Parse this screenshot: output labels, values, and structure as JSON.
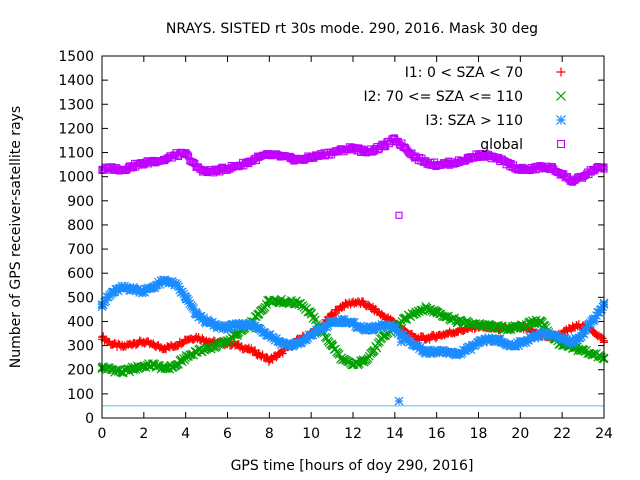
{
  "chart_data": {
    "type": "scatter",
    "title": "NRAYS. SISTED rt 30s mode. 290, 2016. Mask 30 deg",
    "xlabel": "GPS time [hours of doy 290, 2016]",
    "ylabel": "Number of GPS receiver-satellite rays",
    "xlim": [
      0,
      24
    ],
    "ylim": [
      0,
      1500
    ],
    "xticks": [
      0,
      2,
      4,
      6,
      8,
      10,
      12,
      14,
      16,
      18,
      20,
      22,
      24
    ],
    "yticks": [
      0,
      100,
      200,
      300,
      400,
      500,
      600,
      700,
      800,
      900,
      1000,
      1100,
      1200,
      1300,
      1400,
      1500
    ],
    "legend_position": "top-right",
    "reference_line": {
      "y": 50,
      "color": "#45c8e0"
    },
    "series": [
      {
        "name": "I1: 0 < SZA < 70",
        "marker": "plus",
        "color": "#ff0000",
        "x": [
          0,
          0.5,
          1,
          1.5,
          2,
          2.5,
          3,
          3.5,
          4,
          4.5,
          5,
          5.5,
          6,
          6.5,
          7,
          7.5,
          8,
          8.5,
          9,
          9.5,
          10,
          10.5,
          11,
          11.5,
          12,
          12.5,
          13,
          13.5,
          14,
          14.5,
          15,
          15.5,
          16,
          16.5,
          17,
          17.5,
          18,
          18.5,
          19,
          19.5,
          20,
          20.5,
          21,
          21.5,
          22,
          22.5,
          23,
          23.5,
          24
        ],
        "values": [
          335,
          305,
          295,
          310,
          315,
          300,
          290,
          300,
          325,
          335,
          320,
          310,
          310,
          300,
          285,
          265,
          240,
          265,
          300,
          330,
          350,
          380,
          430,
          465,
          480,
          475,
          450,
          420,
          395,
          360,
          330,
          330,
          340,
          350,
          360,
          370,
          380,
          375,
          370,
          370,
          375,
          360,
          345,
          330,
          350,
          375,
          385,
          360,
          320
        ]
      },
      {
        "name": "I2: 70 <= SZA <= 110",
        "marker": "cross",
        "color": "#00a000",
        "x": [
          0,
          0.5,
          1,
          1.5,
          2,
          2.5,
          3,
          3.5,
          4,
          4.5,
          5,
          5.5,
          6,
          6.5,
          7,
          7.5,
          8,
          8.5,
          9,
          9.5,
          10,
          10.5,
          11,
          11.5,
          12,
          12.5,
          13,
          13.5,
          14,
          14.5,
          15,
          15.5,
          16,
          16.5,
          17,
          17.5,
          18,
          18.5,
          19,
          19.5,
          20,
          20.5,
          21,
          21.5,
          22,
          22.5,
          23,
          23.5,
          24
        ],
        "values": [
          210,
          200,
          190,
          205,
          215,
          220,
          205,
          215,
          250,
          275,
          285,
          300,
          320,
          350,
          380,
          430,
          490,
          485,
          480,
          475,
          430,
          360,
          300,
          240,
          220,
          235,
          280,
          340,
          375,
          410,
          440,
          455,
          440,
          420,
          400,
          395,
          385,
          380,
          375,
          370,
          380,
          395,
          400,
          340,
          300,
          290,
          280,
          265,
          245
        ]
      },
      {
        "name": "I3: SZA > 110",
        "marker": "star",
        "color": "#1a8cff",
        "x": [
          0,
          0.5,
          1,
          1.5,
          2,
          2.5,
          3,
          3.5,
          4,
          4.5,
          5,
          5.5,
          6,
          6.5,
          7,
          7.5,
          8,
          8.5,
          9,
          9.5,
          10,
          10.5,
          11,
          11.5,
          12,
          12.5,
          13,
          13.5,
          14,
          14.5,
          15,
          15.5,
          16,
          16.5,
          17,
          17.5,
          18,
          18.5,
          19,
          19.5,
          20,
          20.5,
          21,
          21.5,
          22,
          22.5,
          23,
          23.5,
          24
        ],
        "values": [
          470,
          520,
          540,
          535,
          525,
          545,
          570,
          555,
          500,
          430,
          400,
          380,
          375,
          385,
          390,
          370,
          345,
          315,
          300,
          310,
          345,
          370,
          395,
          405,
          390,
          370,
          370,
          385,
          370,
          330,
          300,
          275,
          275,
          270,
          265,
          285,
          310,
          325,
          320,
          300,
          310,
          330,
          350,
          345,
          325,
          315,
          350,
          410,
          470
        ]
      },
      {
        "name": "global",
        "marker": "square",
        "color": "#c000ff",
        "x": [
          0,
          0.5,
          1,
          1.5,
          2,
          2.5,
          3,
          3.5,
          4,
          4.5,
          5,
          5.5,
          6,
          6.5,
          7,
          7.5,
          8,
          8.5,
          9,
          9.5,
          10,
          10.5,
          11,
          11.5,
          12,
          12.5,
          13,
          13.5,
          14,
          14.5,
          15,
          15.5,
          16,
          16.5,
          17,
          17.5,
          18,
          18.5,
          19,
          19.5,
          20,
          20.5,
          21,
          21.5,
          22,
          22.5,
          23,
          23.5,
          24
        ],
        "values": [
          1030,
          1035,
          1030,
          1045,
          1055,
          1065,
          1070,
          1090,
          1095,
          1040,
          1020,
          1025,
          1035,
          1045,
          1060,
          1080,
          1090,
          1085,
          1075,
          1070,
          1080,
          1090,
          1100,
          1110,
          1120,
          1105,
          1110,
          1130,
          1155,
          1120,
          1080,
          1060,
          1050,
          1055,
          1060,
          1075,
          1090,
          1085,
          1070,
          1050,
          1030,
          1030,
          1040,
          1035,
          1010,
          980,
          1000,
          1030,
          1040
        ]
      }
    ],
    "outliers": [
      {
        "series": "global",
        "x": 14.2,
        "y": 840
      },
      {
        "series": "I3: SZA > 110",
        "x": 14.2,
        "y": 70
      },
      {
        "series": "I3: SZA > 110",
        "x": 14.3,
        "y": 315
      }
    ]
  }
}
